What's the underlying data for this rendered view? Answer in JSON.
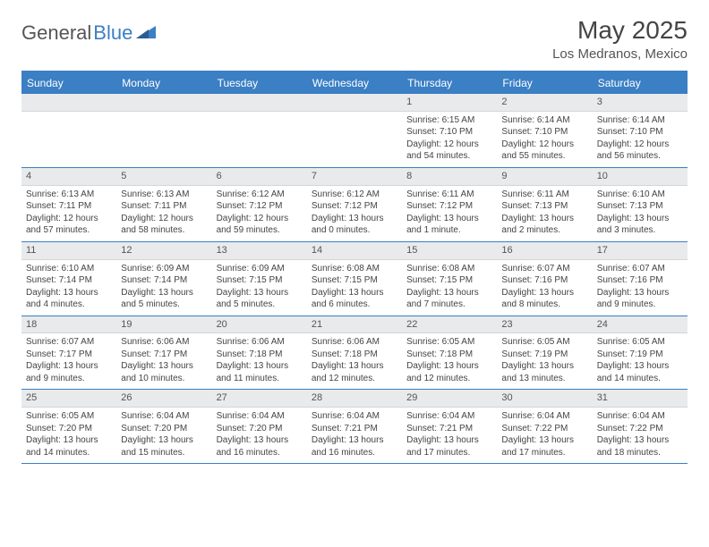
{
  "logo": {
    "part1": "General",
    "part2": "Blue"
  },
  "title": "May 2025",
  "location": "Los Medranos, Mexico",
  "colors": {
    "header_bg": "#3b7fc4",
    "daynum_bg": "#e8eaec",
    "text": "#444444",
    "page_bg": "#ffffff"
  },
  "day_names": [
    "Sunday",
    "Monday",
    "Tuesday",
    "Wednesday",
    "Thursday",
    "Friday",
    "Saturday"
  ],
  "weeks": [
    [
      null,
      null,
      null,
      null,
      {
        "n": "1",
        "sr": "Sunrise: 6:15 AM",
        "ss": "Sunset: 7:10 PM",
        "d1": "Daylight: 12 hours",
        "d2": "and 54 minutes."
      },
      {
        "n": "2",
        "sr": "Sunrise: 6:14 AM",
        "ss": "Sunset: 7:10 PM",
        "d1": "Daylight: 12 hours",
        "d2": "and 55 minutes."
      },
      {
        "n": "3",
        "sr": "Sunrise: 6:14 AM",
        "ss": "Sunset: 7:10 PM",
        "d1": "Daylight: 12 hours",
        "d2": "and 56 minutes."
      }
    ],
    [
      {
        "n": "4",
        "sr": "Sunrise: 6:13 AM",
        "ss": "Sunset: 7:11 PM",
        "d1": "Daylight: 12 hours",
        "d2": "and 57 minutes."
      },
      {
        "n": "5",
        "sr": "Sunrise: 6:13 AM",
        "ss": "Sunset: 7:11 PM",
        "d1": "Daylight: 12 hours",
        "d2": "and 58 minutes."
      },
      {
        "n": "6",
        "sr": "Sunrise: 6:12 AM",
        "ss": "Sunset: 7:12 PM",
        "d1": "Daylight: 12 hours",
        "d2": "and 59 minutes."
      },
      {
        "n": "7",
        "sr": "Sunrise: 6:12 AM",
        "ss": "Sunset: 7:12 PM",
        "d1": "Daylight: 13 hours",
        "d2": "and 0 minutes."
      },
      {
        "n": "8",
        "sr": "Sunrise: 6:11 AM",
        "ss": "Sunset: 7:12 PM",
        "d1": "Daylight: 13 hours",
        "d2": "and 1 minute."
      },
      {
        "n": "9",
        "sr": "Sunrise: 6:11 AM",
        "ss": "Sunset: 7:13 PM",
        "d1": "Daylight: 13 hours",
        "d2": "and 2 minutes."
      },
      {
        "n": "10",
        "sr": "Sunrise: 6:10 AM",
        "ss": "Sunset: 7:13 PM",
        "d1": "Daylight: 13 hours",
        "d2": "and 3 minutes."
      }
    ],
    [
      {
        "n": "11",
        "sr": "Sunrise: 6:10 AM",
        "ss": "Sunset: 7:14 PM",
        "d1": "Daylight: 13 hours",
        "d2": "and 4 minutes."
      },
      {
        "n": "12",
        "sr": "Sunrise: 6:09 AM",
        "ss": "Sunset: 7:14 PM",
        "d1": "Daylight: 13 hours",
        "d2": "and 5 minutes."
      },
      {
        "n": "13",
        "sr": "Sunrise: 6:09 AM",
        "ss": "Sunset: 7:15 PM",
        "d1": "Daylight: 13 hours",
        "d2": "and 5 minutes."
      },
      {
        "n": "14",
        "sr": "Sunrise: 6:08 AM",
        "ss": "Sunset: 7:15 PM",
        "d1": "Daylight: 13 hours",
        "d2": "and 6 minutes."
      },
      {
        "n": "15",
        "sr": "Sunrise: 6:08 AM",
        "ss": "Sunset: 7:15 PM",
        "d1": "Daylight: 13 hours",
        "d2": "and 7 minutes."
      },
      {
        "n": "16",
        "sr": "Sunrise: 6:07 AM",
        "ss": "Sunset: 7:16 PM",
        "d1": "Daylight: 13 hours",
        "d2": "and 8 minutes."
      },
      {
        "n": "17",
        "sr": "Sunrise: 6:07 AM",
        "ss": "Sunset: 7:16 PM",
        "d1": "Daylight: 13 hours",
        "d2": "and 9 minutes."
      }
    ],
    [
      {
        "n": "18",
        "sr": "Sunrise: 6:07 AM",
        "ss": "Sunset: 7:17 PM",
        "d1": "Daylight: 13 hours",
        "d2": "and 9 minutes."
      },
      {
        "n": "19",
        "sr": "Sunrise: 6:06 AM",
        "ss": "Sunset: 7:17 PM",
        "d1": "Daylight: 13 hours",
        "d2": "and 10 minutes."
      },
      {
        "n": "20",
        "sr": "Sunrise: 6:06 AM",
        "ss": "Sunset: 7:18 PM",
        "d1": "Daylight: 13 hours",
        "d2": "and 11 minutes."
      },
      {
        "n": "21",
        "sr": "Sunrise: 6:06 AM",
        "ss": "Sunset: 7:18 PM",
        "d1": "Daylight: 13 hours",
        "d2": "and 12 minutes."
      },
      {
        "n": "22",
        "sr": "Sunrise: 6:05 AM",
        "ss": "Sunset: 7:18 PM",
        "d1": "Daylight: 13 hours",
        "d2": "and 12 minutes."
      },
      {
        "n": "23",
        "sr": "Sunrise: 6:05 AM",
        "ss": "Sunset: 7:19 PM",
        "d1": "Daylight: 13 hours",
        "d2": "and 13 minutes."
      },
      {
        "n": "24",
        "sr": "Sunrise: 6:05 AM",
        "ss": "Sunset: 7:19 PM",
        "d1": "Daylight: 13 hours",
        "d2": "and 14 minutes."
      }
    ],
    [
      {
        "n": "25",
        "sr": "Sunrise: 6:05 AM",
        "ss": "Sunset: 7:20 PM",
        "d1": "Daylight: 13 hours",
        "d2": "and 14 minutes."
      },
      {
        "n": "26",
        "sr": "Sunrise: 6:04 AM",
        "ss": "Sunset: 7:20 PM",
        "d1": "Daylight: 13 hours",
        "d2": "and 15 minutes."
      },
      {
        "n": "27",
        "sr": "Sunrise: 6:04 AM",
        "ss": "Sunset: 7:20 PM",
        "d1": "Daylight: 13 hours",
        "d2": "and 16 minutes."
      },
      {
        "n": "28",
        "sr": "Sunrise: 6:04 AM",
        "ss": "Sunset: 7:21 PM",
        "d1": "Daylight: 13 hours",
        "d2": "and 16 minutes."
      },
      {
        "n": "29",
        "sr": "Sunrise: 6:04 AM",
        "ss": "Sunset: 7:21 PM",
        "d1": "Daylight: 13 hours",
        "d2": "and 17 minutes."
      },
      {
        "n": "30",
        "sr": "Sunrise: 6:04 AM",
        "ss": "Sunset: 7:22 PM",
        "d1": "Daylight: 13 hours",
        "d2": "and 17 minutes."
      },
      {
        "n": "31",
        "sr": "Sunrise: 6:04 AM",
        "ss": "Sunset: 7:22 PM",
        "d1": "Daylight: 13 hours",
        "d2": "and 18 minutes."
      }
    ]
  ]
}
